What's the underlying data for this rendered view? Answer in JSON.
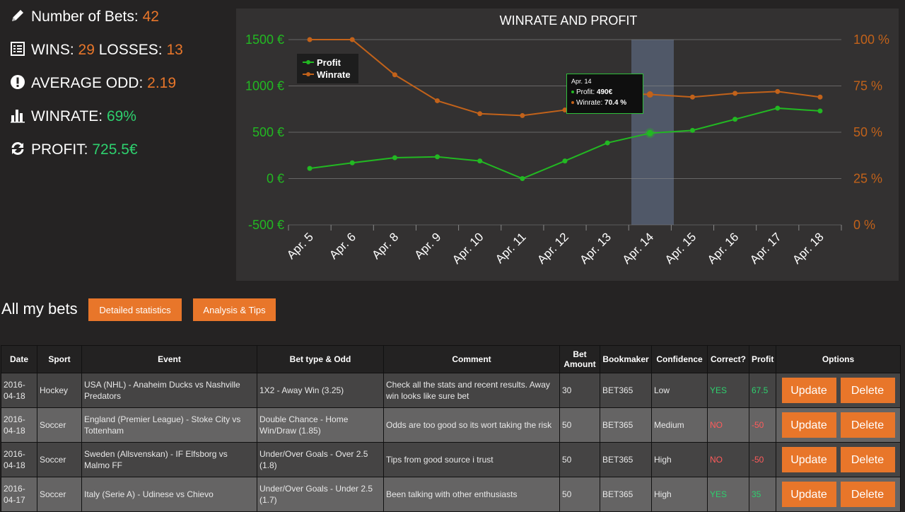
{
  "stats": {
    "bets_label": "Number of Bets:",
    "bets_value": "42",
    "wins_label": "WINS:",
    "wins_value": "29",
    "losses_label": "LOSSES:",
    "losses_value": "13",
    "odd_label": "AVERAGE ODD:",
    "odd_value": "2.19",
    "winrate_label": "WINRATE:",
    "winrate_value": "69%",
    "profit_label": "PROFIT:",
    "profit_value": "725.5€"
  },
  "chart_data": {
    "type": "line",
    "title": "WINRATE AND PROFIT",
    "categories": [
      "Apr. 5",
      "Apr. 6",
      "Apr. 8",
      "Apr. 9",
      "Apr. 10",
      "Apr. 11",
      "Apr. 12",
      "Apr. 13",
      "Apr. 14",
      "Apr. 15",
      "Apr. 16",
      "Apr. 17",
      "Apr. 18"
    ],
    "series": [
      {
        "name": "Profit",
        "axis": "left",
        "color": "#22b822",
        "values": [
          110,
          170,
          225,
          235,
          190,
          0,
          190,
          385,
          490,
          520,
          640,
          760,
          730
        ]
      },
      {
        "name": "Winrate",
        "axis": "right",
        "color": "#c2621a",
        "values": [
          100,
          100,
          81,
          67,
          60,
          59,
          62,
          71,
          70.4,
          69,
          71,
          72,
          69
        ]
      }
    ],
    "y_left": {
      "min": -500,
      "max": 1500,
      "ticks": [
        "1500 €",
        "1000 €",
        "500 €",
        "0 €",
        "-500 €"
      ]
    },
    "y_right": {
      "min": 0,
      "max": 100,
      "ticks": [
        "100 %",
        "75 %",
        "50 %",
        "25 %",
        "0 %"
      ]
    },
    "legend_placement": "top-left",
    "highlight_category": "Apr. 14",
    "tooltip": {
      "title": "Apr. 14",
      "profit_label": "Profit:",
      "profit_value": "490€",
      "winrate_label": "Winrate:",
      "winrate_value": "70.4 %"
    }
  },
  "section": {
    "title": "All my bets",
    "btn_detailed": "Detailed statistics",
    "btn_analysis": "Analysis & Tips"
  },
  "table": {
    "headers": {
      "date": "Date",
      "sport": "Sport",
      "event": "Event",
      "bettype": "Bet type & Odd",
      "comment": "Comment",
      "amount_1": "Bet",
      "amount_2": "Amount",
      "bookmaker": "Bookmaker",
      "confidence": "Confidence",
      "correct": "Correct?",
      "profit": "Profit",
      "options": "Options"
    },
    "rows": [
      {
        "date_1": "2016-",
        "date_2": "04-18",
        "sport": "Hockey",
        "event": "USA (NHL) - Anaheim Ducks vs Nashville Predators",
        "bettype": "1X2 - Away Win (3.25)",
        "comment": "Check all the stats and recent results. Away win looks like sure bet",
        "amount": "30",
        "bookmaker": "BET365",
        "confidence": "Low",
        "correct": "YES",
        "profit": "67.5",
        "update": "Update",
        "delete": "Delete"
      },
      {
        "date_1": "2016-",
        "date_2": "04-18",
        "sport": "Soccer",
        "event": "England (Premier League) - Stoke City vs Tottenham",
        "bettype": "Double Chance - Home Win/Draw (1.85)",
        "comment": "Odds are too good so its wort taking the risk",
        "amount": "50",
        "bookmaker": "BET365",
        "confidence": "Medium",
        "correct": "NO",
        "profit": "-50",
        "update": "Update",
        "delete": "Delete"
      },
      {
        "date_1": "2016-",
        "date_2": "04-18",
        "sport": "Soccer",
        "event": "Sweden (Allsvenskan) - IF Elfsborg vs Malmo FF",
        "bettype": "Under/Over Goals - Over 2.5 (1.8)",
        "comment": "Tips from good source i trust",
        "amount": "50",
        "bookmaker": "BET365",
        "confidence": "High",
        "correct": "NO",
        "profit": "-50",
        "update": "Update",
        "delete": "Delete"
      },
      {
        "date_1": "2016-",
        "date_2": "04-17",
        "sport": "Soccer",
        "event": "Italy (Serie A) - Udinese vs Chievo",
        "bettype": "Under/Over Goals - Under 2.5 (1.7)",
        "comment": "Been talking with other enthusiasts",
        "amount": "50",
        "bookmaker": "BET365",
        "confidence": "High",
        "correct": "YES",
        "profit": "35",
        "update": "Update",
        "delete": "Delete"
      }
    ]
  },
  "colors": {
    "accent": "#e8762a",
    "good": "#2ed06e",
    "bad": "#ff5b5b",
    "profit_line": "#22b822",
    "winrate_line": "#c2621a"
  },
  "icons": {
    "bets": "pencil-icon",
    "wins": "list-icon",
    "odd": "exclamation-icon",
    "winrate": "bar-chart-icon",
    "profit": "refresh-icon"
  }
}
